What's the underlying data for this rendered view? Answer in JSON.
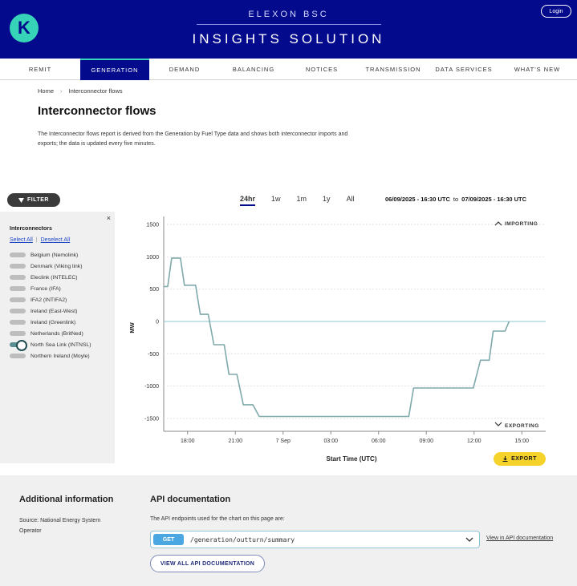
{
  "header": {
    "logo_letter": "K",
    "brand_top": "ELEXON BSC",
    "brand_main": "INSIGHTS SOLUTION",
    "login_label": "Login"
  },
  "nav": {
    "items": [
      "REMIT",
      "GENERATION",
      "DEMAND",
      "BALANCING",
      "NOTICES",
      "TRANSMISSION",
      "DATA SERVICES",
      "WHAT'S NEW"
    ],
    "active": "GENERATION"
  },
  "breadcrumb": {
    "home": "Home",
    "current": "Interconnector flows"
  },
  "page": {
    "title": "Interconnector flows",
    "description": "The Interconnector flows report is derived from the Generation by Fuel Type data and shows both interconnector imports and exports; the data is updated every five minutes."
  },
  "filter": {
    "label": "FILTER"
  },
  "range": {
    "tabs": [
      "24hr",
      "1w",
      "1m",
      "1y",
      "All"
    ],
    "active": "24hr",
    "from": "06/09/2025 - 16:30 UTC",
    "to_word": "to",
    "to": "07/09/2025 - 16:30 UTC"
  },
  "panel": {
    "close": "×",
    "title": "Interconnectors",
    "select_all": "Select All",
    "deselect_all": "Deselect All",
    "items": [
      {
        "label": "Belgium (Nemolink)",
        "on": false
      },
      {
        "label": "Denmark (Viking link)",
        "on": false
      },
      {
        "label": "Eleclink (INTELEC)",
        "on": false
      },
      {
        "label": "France (IFA)",
        "on": false
      },
      {
        "label": "IFA2 (INTIFA2)",
        "on": false
      },
      {
        "label": "Ireland (East-West)",
        "on": false
      },
      {
        "label": "Ireland (Greenlink)",
        "on": false
      },
      {
        "label": "Netherlands (BritNed)",
        "on": false
      },
      {
        "label": "North Sea Link (INTNSL)",
        "on": true
      },
      {
        "label": "Northern Ireland (Moyle)",
        "on": false
      }
    ]
  },
  "chart_data": {
    "type": "line",
    "xlabel": "Start Time (UTC)",
    "ylabel": "MW",
    "ylim": [
      -1700,
      1500
    ],
    "yticks": [
      1500,
      1000,
      500,
      0,
      -500,
      -1000,
      -1500
    ],
    "x_range_hours": [
      16.5,
      40.5
    ],
    "xticks": [
      {
        "h": 18,
        "label": "18:00"
      },
      {
        "h": 21,
        "label": "21:00"
      },
      {
        "h": 24,
        "label": "7 Sep"
      },
      {
        "h": 27,
        "label": "03:00"
      },
      {
        "h": 30,
        "label": "06:00"
      },
      {
        "h": 33,
        "label": "09:00"
      },
      {
        "h": 36,
        "label": "12:00"
      },
      {
        "h": 39,
        "label": "15:00"
      }
    ],
    "importing_label": "IMPORTING",
    "exporting_label": "EXPORTING",
    "line_color": "#7fa9aa",
    "zero_color": "#8ec9cf",
    "series": [
      {
        "points": [
          [
            16.5,
            540
          ],
          [
            16.75,
            540
          ],
          [
            17.0,
            980
          ],
          [
            17.55,
            980
          ],
          [
            17.8,
            560
          ],
          [
            18.5,
            560
          ],
          [
            18.8,
            110
          ],
          [
            19.3,
            110
          ],
          [
            19.65,
            -360
          ],
          [
            20.3,
            -360
          ],
          [
            20.6,
            -820
          ],
          [
            21.1,
            -820
          ],
          [
            21.5,
            -1290
          ],
          [
            22.1,
            -1290
          ],
          [
            22.5,
            -1470
          ],
          [
            31.9,
            -1470
          ],
          [
            32.2,
            -1030
          ],
          [
            35.95,
            -1030
          ],
          [
            36.4,
            -600
          ],
          [
            36.95,
            -600
          ],
          [
            37.2,
            -150
          ],
          [
            37.95,
            -150
          ],
          [
            38.2,
            0
          ]
        ]
      }
    ]
  },
  "export": {
    "label": "EXPORT"
  },
  "bottom": {
    "additional_title": "Additional information",
    "source": "Source: National Energy System Operator",
    "api_title": "API documentation",
    "api_desc": "The API endpoints used for the chart on this page are:",
    "method": "GET",
    "endpoint": "/generation/outturn/summary",
    "view_doc": "View in API documentation",
    "view_all": "VIEW ALL API DOCUMENTATION"
  }
}
